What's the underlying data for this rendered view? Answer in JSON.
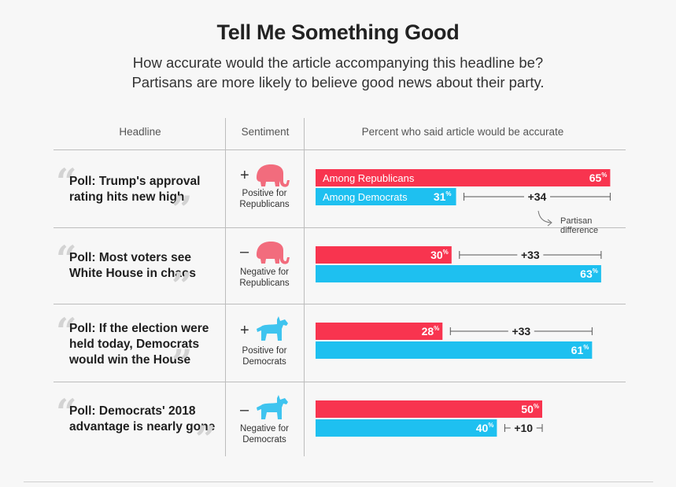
{
  "title": "Tell Me Something Good",
  "subtitle_lines": [
    "How accurate would the article accompanying this headline be?",
    "Partisans are more likely to believe good news about their party."
  ],
  "columns": {
    "headline": "Headline",
    "sentiment": "Sentiment",
    "percent": "Percent who said article would be accurate"
  },
  "rows": [
    {
      "headline_lines": [
        "Poll: Trump's approval",
        "rating hits new high"
      ],
      "sign": "+",
      "mascot": "elephant-icon",
      "sentiment_lines": [
        "Positive for",
        "Republicans"
      ]
    },
    {
      "headline_lines": [
        "Poll: Most voters see",
        "White House in chaos"
      ],
      "sign": "–",
      "mascot": "elephant-icon",
      "sentiment_lines": [
        "Negative for",
        "Republicans"
      ]
    },
    {
      "headline_lines": [
        "Poll: If the election were",
        "held today, Democrats",
        "would win the House"
      ],
      "sign": "+",
      "mascot": "donkey-icon",
      "sentiment_lines": [
        "Positive for",
        "Democrats"
      ]
    },
    {
      "headline_lines": [
        "Poll: Democrats' 2018",
        "advantage is nearly gone"
      ],
      "sign": "–",
      "mascot": "donkey-icon",
      "sentiment_lines": [
        "Negative for",
        "Democrats"
      ]
    }
  ],
  "colors": {
    "republicans": "#f8344f",
    "democrats": "#1ec0f0",
    "elephant": "#f26c7d",
    "donkey": "#3fc4ef",
    "rule": "#bdbdbd"
  },
  "chart_data": {
    "type": "bar",
    "orientation": "horizontal",
    "title": "Percent who said article would be accurate",
    "unit": "%",
    "xlim": [
      0,
      100
    ],
    "categories": [
      "Poll: Trump's approval rating hits new high",
      "Poll: Most voters see White House in chaos",
      "Poll: If the election were held today, Democrats would win the House",
      "Poll: Democrats' 2018 advantage is nearly gone"
    ],
    "series": [
      {
        "name": "Among Republicans",
        "values": [
          65,
          30,
          28,
          50
        ]
      },
      {
        "name": "Among Democrats",
        "values": [
          31,
          63,
          61,
          40
        ]
      }
    ],
    "differences": [
      "+34",
      "+33",
      "+33",
      "+10"
    ],
    "annotation_lines": [
      "Partisan",
      "difference"
    ]
  }
}
